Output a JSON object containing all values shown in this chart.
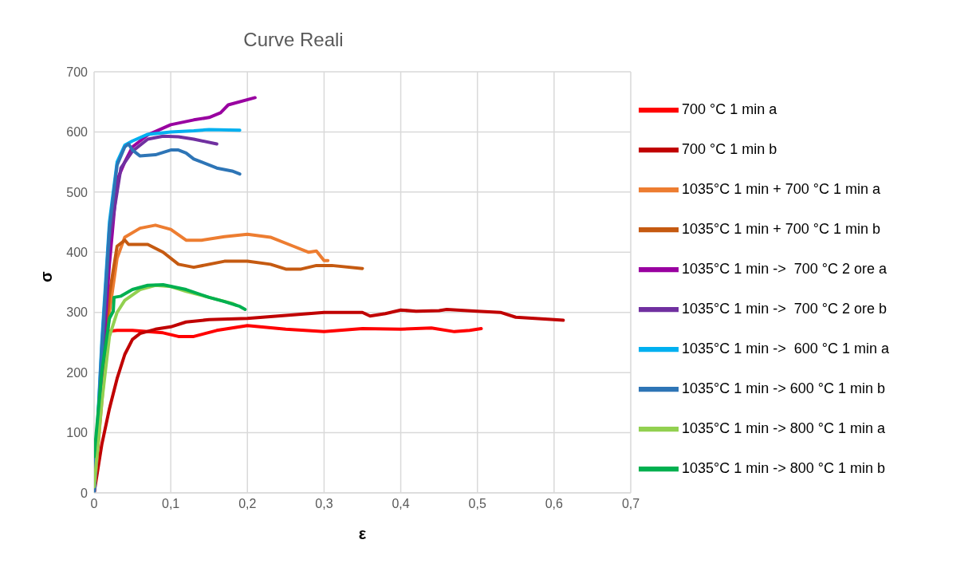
{
  "chart_data": {
    "type": "line",
    "title": "Curve Reali",
    "xlabel": "ε",
    "ylabel": "σ",
    "xlim": [
      0,
      0.7
    ],
    "xticks": [
      0,
      {
        "value": 0.1,
        "label": "0,1"
      },
      {
        "value": 0.2,
        "label": "0,2"
      },
      {
        "value": 0.3,
        "label": "0,3"
      },
      {
        "value": 0.4,
        "label": "0,4"
      },
      {
        "value": 0.5,
        "label": "0,5"
      },
      {
        "value": 0.6,
        "label": "0,6"
      },
      {
        "value": 0.7,
        "label": "0,7"
      }
    ],
    "ylim": [
      0,
      700
    ],
    "yticks": [
      0,
      100,
      200,
      300,
      400,
      500,
      600,
      700
    ],
    "grid": true,
    "legend": "right",
    "marker": "none",
    "line_style": "solid",
    "series": [
      {
        "name": "700 °C 1 min a",
        "color": "#ff0000",
        "x": [
          0,
          0.015,
          0.03,
          0.05,
          0.07,
          0.09,
          0.11,
          0.13,
          0.16,
          0.2,
          0.25,
          0.3,
          0.35,
          0.4,
          0.44,
          0.47,
          0.49,
          0.505
        ],
        "values": [
          0,
          268,
          270,
          270,
          268,
          266,
          260,
          260,
          270,
          278,
          272,
          268,
          273,
          272,
          274,
          268,
          270,
          273
        ]
      },
      {
        "name": "700 °C 1 min b",
        "color": "#c00000",
        "x": [
          0,
          0.01,
          0.02,
          0.03,
          0.04,
          0.05,
          0.06,
          0.08,
          0.1,
          0.12,
          0.15,
          0.2,
          0.25,
          0.3,
          0.35,
          0.36,
          0.38,
          0.4,
          0.42,
          0.45,
          0.46,
          0.5,
          0.53,
          0.55,
          0.6,
          0.612
        ],
        "values": [
          0,
          80,
          140,
          190,
          230,
          255,
          265,
          272,
          276,
          284,
          288,
          290,
          295,
          300,
          300,
          294,
          298,
          304,
          302,
          303,
          305,
          302,
          300,
          292,
          288,
          287
        ]
      },
      {
        "name": "1035°C 1 min + 700 °C 1 min a",
        "color": "#ed7d31",
        "x": [
          0,
          0.01,
          0.02,
          0.03,
          0.04,
          0.06,
          0.08,
          0.1,
          0.12,
          0.14,
          0.17,
          0.2,
          0.23,
          0.26,
          0.28,
          0.29,
          0.3,
          0.305
        ],
        "values": [
          0,
          150,
          300,
          390,
          425,
          440,
          445,
          438,
          420,
          420,
          426,
          430,
          425,
          410,
          400,
          402,
          386,
          386
        ]
      },
      {
        "name": "1035°C 1 min + 700 °C 1 min b",
        "color": "#c55a11",
        "x": [
          0,
          0.01,
          0.02,
          0.03,
          0.04,
          0.045,
          0.07,
          0.09,
          0.11,
          0.13,
          0.17,
          0.2,
          0.23,
          0.25,
          0.27,
          0.29,
          0.31,
          0.35
        ],
        "values": [
          0,
          180,
          330,
          410,
          420,
          413,
          413,
          400,
          380,
          375,
          385,
          385,
          380,
          372,
          372,
          378,
          378,
          373
        ]
      },
      {
        "name": "1035°C 1 min ->  700 °C 2 ore a",
        "color": "#9900a0",
        "x": [
          0,
          0.01,
          0.02,
          0.03,
          0.04,
          0.05,
          0.07,
          0.1,
          0.13,
          0.15,
          0.165,
          0.175,
          0.21
        ],
        "values": [
          0,
          200,
          380,
          520,
          550,
          575,
          595,
          612,
          620,
          624,
          632,
          645,
          657
        ]
      },
      {
        "name": "1035°C 1 min ->  700 °C 2 ore b",
        "color": "#7030a0",
        "x": [
          0,
          0.02,
          0.035,
          0.05,
          0.07,
          0.09,
          0.11,
          0.13,
          0.16
        ],
        "values": [
          0,
          420,
          540,
          568,
          588,
          593,
          592,
          588,
          580
        ]
      },
      {
        "name": "1035°C 1 min ->  600 °C 1 min a",
        "color": "#00b0f0",
        "x": [
          0,
          0.01,
          0.02,
          0.03,
          0.04,
          0.05,
          0.07,
          0.1,
          0.13,
          0.15,
          0.19
        ],
        "values": [
          0,
          250,
          450,
          550,
          578,
          585,
          596,
          600,
          602,
          604,
          603
        ]
      },
      {
        "name": "1035°C 1 min -> 600 °C 1 min b",
        "color": "#2e75b6",
        "x": [
          0,
          0.01,
          0.02,
          0.03,
          0.04,
          0.045,
          0.05,
          0.06,
          0.08,
          0.1,
          0.11,
          0.12,
          0.13,
          0.16,
          0.18,
          0.19
        ],
        "values": [
          0,
          240,
          440,
          545,
          575,
          580,
          570,
          560,
          562,
          570,
          570,
          565,
          555,
          540,
          535,
          530
        ]
      },
      {
        "name": "1035°C 1 min -> 800 °C 1 min a",
        "color": "#92d050",
        "x": [
          0,
          0.01,
          0.02,
          0.03,
          0.04,
          0.06,
          0.08,
          0.1,
          0.12,
          0.15,
          0.18,
          0.185
        ],
        "values": [
          10,
          150,
          260,
          300,
          320,
          338,
          345,
          343,
          335,
          325,
          315,
          312
        ]
      },
      {
        "name": "1035°C 1 min -> 800 °C 1 min b",
        "color": "#00b050",
        "x": [
          0,
          0.01,
          0.02,
          0.025,
          0.026,
          0.035,
          0.05,
          0.07,
          0.09,
          0.12,
          0.15,
          0.17,
          0.19,
          0.197
        ],
        "values": [
          60,
          200,
          290,
          302,
          325,
          327,
          338,
          345,
          346,
          338,
          325,
          318,
          310,
          305
        ]
      }
    ]
  }
}
